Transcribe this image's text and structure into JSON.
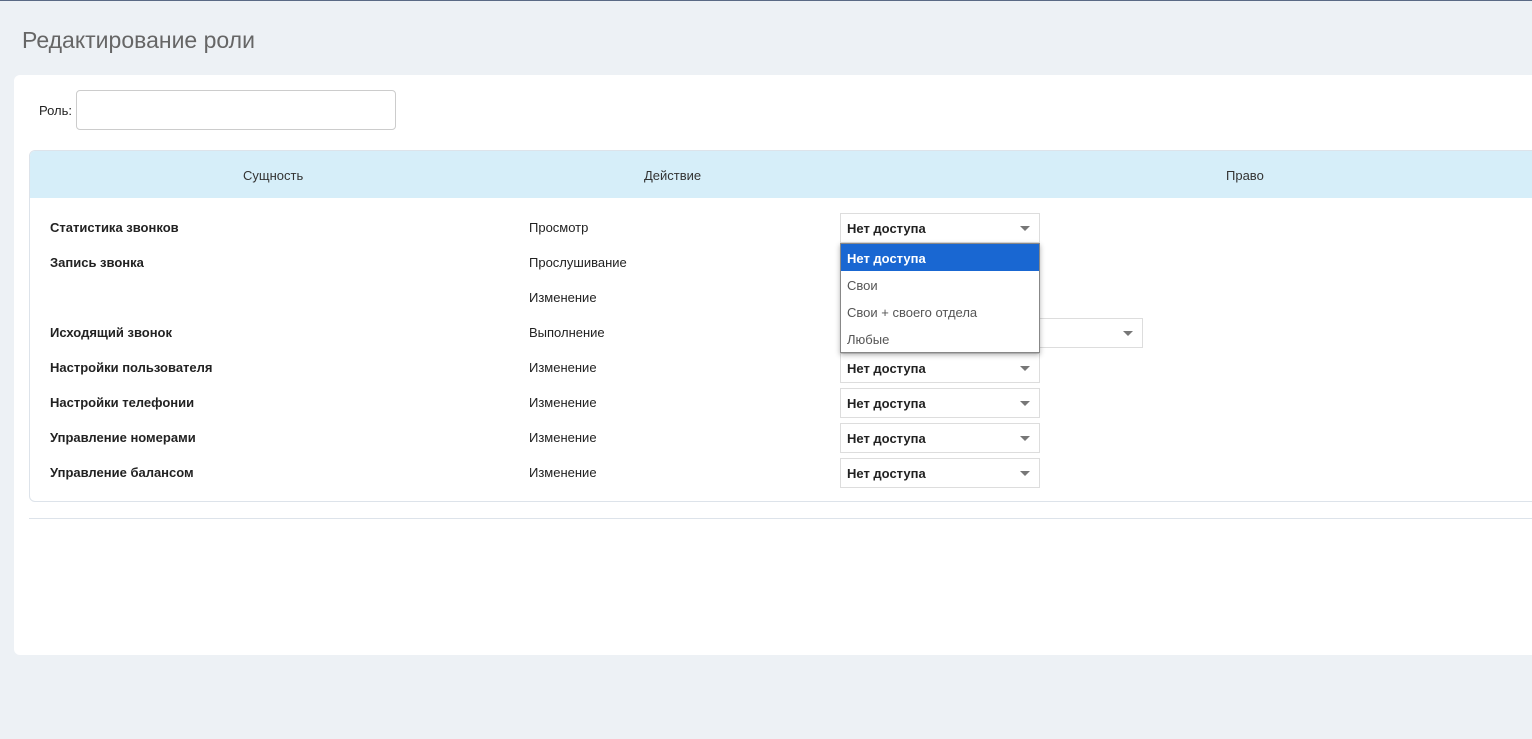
{
  "page_title": "Редактирование роли",
  "role": {
    "label": "Роль:",
    "value": ""
  },
  "table": {
    "headers": [
      "Сущность",
      "Действие",
      "Право"
    ],
    "rows": [
      {
        "entity": "Статистика звонков",
        "action": "Просмотр",
        "right": "Нет доступа"
      },
      {
        "entity": "Запись звонка",
        "action": "Прослушивание",
        "right": ""
      },
      {
        "entity": "",
        "action": "Изменение",
        "right": ""
      },
      {
        "entity": "Исходящий звонок",
        "action": "Выполнение",
        "right": ""
      },
      {
        "entity": "Настройки пользователя",
        "action": "Изменение",
        "right": "Нет доступа"
      },
      {
        "entity": "Настройки телефонии",
        "action": "Изменение",
        "right": "Нет доступа"
      },
      {
        "entity": "Управление номерами",
        "action": "Изменение",
        "right": "Нет доступа"
      },
      {
        "entity": "Управление балансом",
        "action": "Изменение",
        "right": "Нет доступа"
      }
    ]
  },
  "dropdown": {
    "options": [
      "Нет доступа",
      "Свои",
      "Свои + своего отдела",
      "Любые"
    ],
    "selected": "Нет доступа"
  },
  "colors": {
    "header_bg": "#d6eef9",
    "highlight": "#1967d2"
  }
}
